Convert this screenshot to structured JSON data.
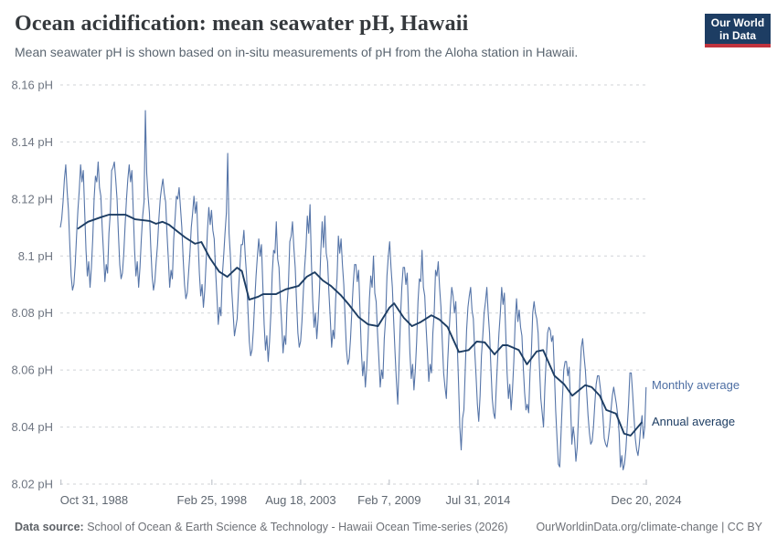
{
  "header": {
    "title": "Ocean acidification: mean seawater pH, Hawaii",
    "subtitle": "Mean seawater pH is shown based on in-situ measurements of pH from the Aloha station in Hawaii."
  },
  "logo": {
    "line1": "Our World",
    "line2": "in Data",
    "bg_color": "#1d3d63",
    "accent_color": "#c0333e"
  },
  "footer": {
    "source_label": "Data source:",
    "source_text": " School of Ocean & Earth Science & Technology - Hawaii Ocean Time-series (2026)",
    "right_text": "OurWorldinData.org/climate-change | CC BY"
  },
  "chart_data": {
    "type": "line",
    "title": "Ocean acidification: mean seawater pH, Hawaii",
    "ylabel_unit": "pH",
    "grid": true,
    "legend_position": "right-of-line-ends",
    "x_range": [
      1988.79,
      2024.97
    ],
    "y_range": [
      8.02,
      8.16
    ],
    "y_axis": {
      "ticks": [
        {
          "value": 8.02,
          "label": "8.02 pH"
        },
        {
          "value": 8.04,
          "label": "8.04 pH"
        },
        {
          "value": 8.06,
          "label": "8.06 pH"
        },
        {
          "value": 8.08,
          "label": "8.08 pH"
        },
        {
          "value": 8.1,
          "label": "8.1 pH"
        },
        {
          "value": 8.12,
          "label": "8.12 pH"
        },
        {
          "value": 8.14,
          "label": "8.14 pH"
        },
        {
          "value": 8.16,
          "label": "8.16 pH"
        }
      ]
    },
    "x_axis": {
      "ticks": [
        {
          "t": 1988.83,
          "label": "Oct 31, 1988"
        },
        {
          "t": 1998.15,
          "label": "Feb 25, 1998"
        },
        {
          "t": 2003.63,
          "label": "Aug 18, 2003"
        },
        {
          "t": 2009.1,
          "label": "Feb 7, 2009"
        },
        {
          "t": 2014.58,
          "label": "Jul 31, 2014"
        },
        {
          "t": 2024.97,
          "label": "Dec 20, 2024"
        }
      ]
    },
    "value_encoding": "pH = 8 + value/1000",
    "series": [
      {
        "name": "Monthly average",
        "color": "#4d6ea3",
        "cadence": "monthly",
        "start": {
          "year": 1988,
          "month": 10
        },
        "values": [
          110,
          113,
          119,
          127,
          132,
          123,
          116,
          104,
          93,
          88,
          90,
          97,
          107,
          116,
          123,
          132,
          126,
          130,
          116,
          102,
          93,
          98,
          89,
          96,
          106,
          120,
          128,
          126,
          133,
          124,
          121,
          110,
          101,
          91,
          97,
          94,
          108,
          115,
          130,
          131,
          133,
          127,
          120,
          108,
          97,
          92,
          94,
          101,
          111,
          120,
          127,
          132,
          126,
          130,
          116,
          102,
          93,
          98,
          89,
          96,
          106,
          114,
          119,
          151,
          129,
          121,
          115,
          103,
          93,
          88,
          91,
          98,
          104,
          113,
          120,
          124,
          127,
          122,
          119,
          108,
          99,
          89,
          95,
          92,
          106,
          113,
          121,
          120,
          124,
          117,
          110,
          99,
          90,
          85,
          87,
          94,
          101,
          110,
          115,
          121,
          115,
          119,
          106,
          94,
          86,
          90,
          82,
          88,
          98,
          109,
          117,
          111,
          116,
          109,
          106,
          95,
          86,
          76,
          82,
          79,
          93,
          100,
          108,
          115,
          136,
          108,
          100,
          88,
          80,
          72,
          75,
          78,
          88,
          96,
          104,
          104,
          109,
          100,
          93,
          81,
          70,
          65,
          67,
          74,
          84,
          93,
          100,
          106,
          100,
          104,
          90,
          76,
          67,
          72,
          63,
          70,
          80,
          94,
          102,
          101,
          112,
          99,
          96,
          85,
          76,
          66,
          72,
          69,
          83,
          90,
          105,
          107,
          112,
          103,
          96,
          84,
          73,
          68,
          70,
          77,
          87,
          96,
          103,
          114,
          108,
          118,
          98,
          84,
          75,
          80,
          71,
          78,
          88,
          102,
          112,
          103,
          114,
          101,
          98,
          87,
          78,
          68,
          74,
          71,
          85,
          92,
          107,
          101,
          106,
          97,
          90,
          78,
          67,
          62,
          64,
          71,
          81,
          90,
          97,
          97,
          91,
          95,
          81,
          67,
          58,
          63,
          54,
          61,
          71,
          85,
          93,
          89,
          100,
          87,
          84,
          73,
          64,
          54,
          60,
          57,
          71,
          78,
          93,
          100,
          105,
          96,
          89,
          77,
          66,
          56,
          48,
          63,
          78,
          89,
          96,
          96,
          90,
          94,
          80,
          66,
          57,
          62,
          53,
          60,
          70,
          84,
          92,
          91,
          102,
          89,
          86,
          75,
          66,
          56,
          62,
          59,
          73,
          80,
          95,
          93,
          98,
          89,
          82,
          70,
          59,
          54,
          50,
          63,
          73,
          82,
          89,
          86,
          80,
          84,
          70,
          56,
          40,
          32,
          43,
          46,
          60,
          74,
          82,
          86,
          89,
          81,
          78,
          67,
          58,
          48,
          42,
          51,
          65,
          72,
          80,
          84,
          89,
          80,
          73,
          61,
          50,
          45,
          43,
          54,
          64,
          73,
          80,
          89,
          83,
          87,
          73,
          59,
          50,
          55,
          46,
          53,
          63,
          77,
          85,
          77,
          81,
          75,
          72,
          61,
          52,
          46,
          48,
          45,
          59,
          66,
          80,
          84,
          80,
          78,
          73,
          61,
          50,
          45,
          40,
          54,
          64,
          73,
          75,
          74,
          70,
          72,
          60,
          46,
          36,
          27,
          26,
          38,
          50,
          60,
          63,
          63,
          58,
          61,
          48,
          34,
          40,
          36,
          28,
          33,
          45,
          58,
          68,
          71,
          65,
          60,
          52,
          44,
          38,
          34,
          35,
          40,
          48,
          55,
          58,
          58,
          54,
          50,
          44,
          36,
          34,
          33,
          36,
          40,
          46,
          51,
          54,
          51,
          48,
          44,
          38,
          26,
          30,
          25,
          27,
          32,
          40,
          48,
          59,
          59,
          52,
          44,
          36,
          32,
          30,
          34,
          40,
          44,
          36,
          40,
          54
        ]
      },
      {
        "name": "Annual average",
        "color": "#1d3d63",
        "points_encoding": "[decimal_year, (pH-8)*1000]",
        "points": [
          [
            1989.85,
            109.5
          ],
          [
            1990.5,
            112
          ],
          [
            1991.3,
            113.6
          ],
          [
            1991.8,
            114.5
          ],
          [
            1992.8,
            114.5
          ],
          [
            1993.4,
            112.9
          ],
          [
            1994.3,
            112.3
          ],
          [
            1994.7,
            111.3
          ],
          [
            1995.1,
            112
          ],
          [
            1995.5,
            111
          ],
          [
            1996.0,
            108.7
          ],
          [
            1996.5,
            106.5
          ],
          [
            1997.1,
            104.3
          ],
          [
            1997.5,
            104.9
          ],
          [
            1998.0,
            99.5
          ],
          [
            1998.6,
            94.5
          ],
          [
            1999.1,
            92.7
          ],
          [
            1999.7,
            95.9
          ],
          [
            2000.0,
            94.7
          ],
          [
            2000.45,
            84.7
          ],
          [
            2001.0,
            85.7
          ],
          [
            2001.3,
            86.6
          ],
          [
            2002.1,
            86.6
          ],
          [
            2002.7,
            88.3
          ],
          [
            2003.5,
            89.5
          ],
          [
            2004.0,
            92.7
          ],
          [
            2004.5,
            94.3
          ],
          [
            2005.0,
            91.4
          ],
          [
            2005.5,
            89.5
          ],
          [
            2006.1,
            86.3
          ],
          [
            2006.6,
            83
          ],
          [
            2007.2,
            78.6
          ],
          [
            2007.8,
            76
          ],
          [
            2008.4,
            75.4
          ],
          [
            2009.1,
            81.8
          ],
          [
            2009.4,
            83.4
          ],
          [
            2010.0,
            78.3
          ],
          [
            2010.5,
            75.4
          ],
          [
            2011.0,
            76.7
          ],
          [
            2011.7,
            79.2
          ],
          [
            2012.2,
            77.7
          ],
          [
            2012.7,
            75.1
          ],
          [
            2013.4,
            66.3
          ],
          [
            2014.0,
            67
          ],
          [
            2014.5,
            70
          ],
          [
            2015.0,
            69.7
          ],
          [
            2015.6,
            65.5
          ],
          [
            2016.1,
            68.7
          ],
          [
            2016.4,
            68.7
          ],
          [
            2017.1,
            67
          ],
          [
            2017.6,
            62
          ],
          [
            2018.2,
            66.5
          ],
          [
            2018.6,
            67
          ],
          [
            2019.3,
            58
          ],
          [
            2019.9,
            55
          ],
          [
            2020.4,
            51
          ],
          [
            2021.2,
            54.7
          ],
          [
            2021.6,
            54
          ],
          [
            2022.1,
            51
          ],
          [
            2022.5,
            46
          ],
          [
            2023.1,
            44.7
          ],
          [
            2023.6,
            37.7
          ],
          [
            2024.0,
            37
          ],
          [
            2024.3,
            39
          ],
          [
            2024.7,
            41.7
          ]
        ]
      }
    ],
    "legend": [
      {
        "label": "Monthly average",
        "color": "#4d6ea3"
      },
      {
        "label": "Annual average",
        "color": "#1d3d63"
      }
    ]
  }
}
